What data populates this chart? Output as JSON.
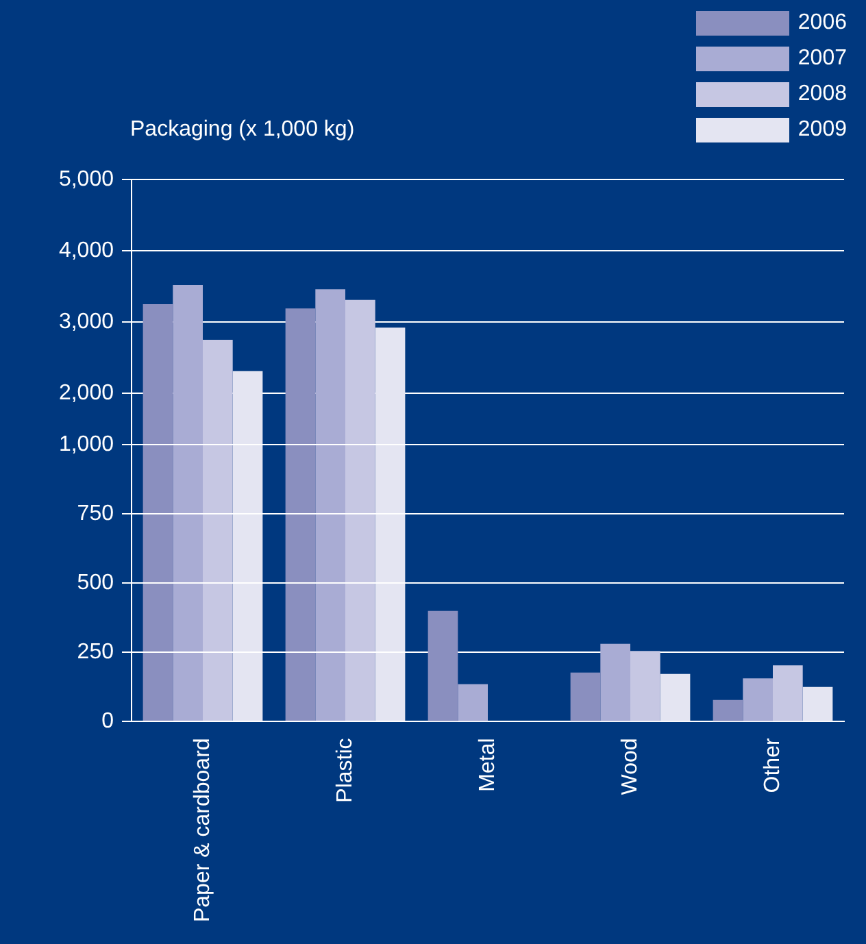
{
  "chart_data": [
    {
      "type": "bar",
      "ylabel": "Packaging (x 1,000 kg)",
      "categories": [
        null,
        null,
        null,
        null,
        null
      ],
      "series": [
        {
          "name": "2006",
          "color": "#8a8fbf",
          "values": [
            3250,
            3190,
            null,
            null,
            null
          ]
        },
        {
          "name": "2007",
          "color": "#a9acd4",
          "values": [
            3520,
            3460,
            null,
            null,
            null
          ]
        },
        {
          "name": "2008",
          "color": "#c6c7e3",
          "values": [
            2750,
            3310,
            null,
            null,
            null
          ]
        },
        {
          "name": "2009",
          "color": "#e4e5f2",
          "values": [
            2310,
            2920,
            null,
            null,
            null
          ]
        }
      ],
      "ylim": [
        1000,
        5000
      ],
      "yticks": [
        {
          "value": 2000,
          "label": "2,000"
        },
        {
          "value": 3000,
          "label": "3,000"
        },
        {
          "value": 4000,
          "label": "4,000"
        },
        {
          "value": 5000,
          "label": "5,000"
        }
      ],
      "tick_labels": "y",
      "grid": "y",
      "legend": "top right"
    },
    {
      "type": "bar",
      "categories": [
        "Paper & cardboard",
        "Plastic",
        "Metal",
        "Wood",
        "Other"
      ],
      "series": [
        {
          "color": "#8a8fbf",
          "values": [
            null,
            null,
            400,
            177,
            78
          ]
        },
        {
          "color": "#a9acd4",
          "values": [
            null,
            null,
            135,
            281,
            156
          ]
        },
        {
          "color": "#c6c7e3",
          "values": [
            null,
            null,
            null,
            255,
            203
          ]
        },
        {
          "color": "#e4e5f2",
          "values": [
            null,
            null,
            null,
            172,
            125
          ]
        }
      ],
      "ylim": [
        0,
        1000
      ],
      "yticks": [
        {
          "value": 0,
          "label": "0"
        },
        {
          "value": 250,
          "label": "250"
        },
        {
          "value": 500,
          "label": "500"
        },
        {
          "value": 750,
          "label": "750"
        },
        {
          "value": 1000,
          "label": "1,000"
        }
      ],
      "grid": "y"
    }
  ]
}
